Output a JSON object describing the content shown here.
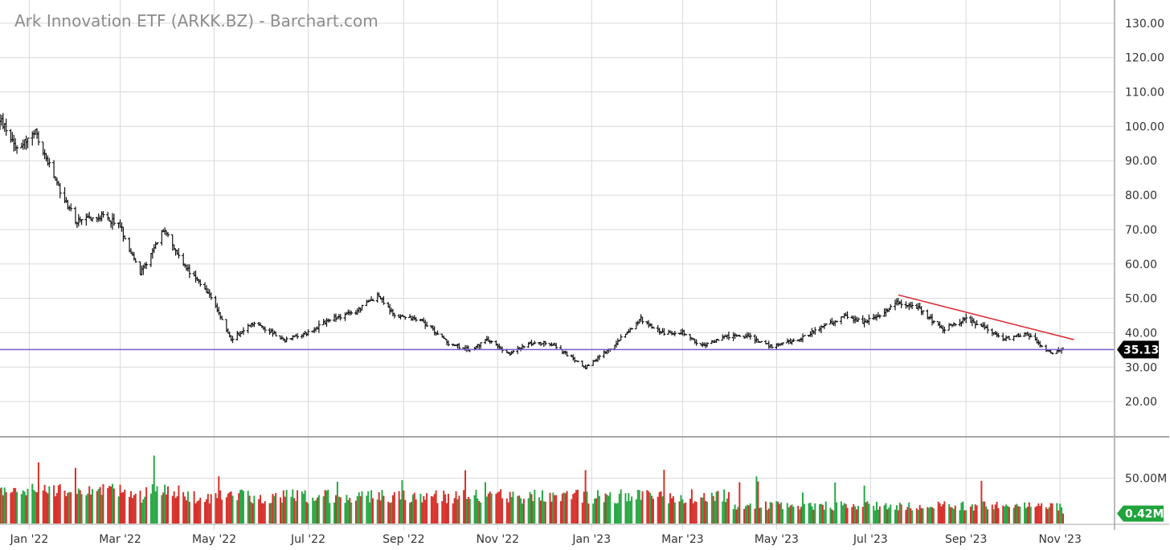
{
  "chart_data": {
    "type": "ohlc",
    "title": "Ark Innovation ETF (ARKK.BZ) - Barchart.com",
    "price_axis": {
      "ticks": [
        "130.00",
        "120.00",
        "110.00",
        "100.00",
        "90.00",
        "80.00",
        "70.00",
        "60.00",
        "50.00",
        "40.00",
        "30.00",
        "20.00"
      ],
      "tick_values": [
        130,
        120,
        110,
        100,
        90,
        80,
        70,
        60,
        50,
        40,
        30,
        20
      ],
      "ylim": [
        10,
        133
      ],
      "position": "right"
    },
    "volume_axis": {
      "ticks": [
        "50.00M"
      ],
      "tick_values": [
        50
      ],
      "ylim": [
        0,
        95
      ]
    },
    "x_axis": {
      "labels": [
        "Jan '22",
        "Mar '22",
        "May '22",
        "Jul '22",
        "Sep '22",
        "Nov '22",
        "Jan '23",
        "Mar '23",
        "May '23",
        "Jul '23",
        "Sep '23",
        "Nov '23"
      ],
      "range": [
        "2021-12-13",
        "2023-11-03"
      ]
    },
    "last_price": "35.13",
    "last_volume": "0.42M",
    "support_line": {
      "value": 35.13,
      "color": "#7b5ccc"
    },
    "trend_line": {
      "start": [
        "2023-07-19",
        51.0
      ],
      "end": [
        "2023-11-10",
        38.0
      ],
      "color": "#d9232d"
    },
    "price_anchors": [
      [
        "2021-12-13",
        102
      ],
      [
        "2021-12-24",
        94
      ],
      [
        "2022-01-05",
        98
      ],
      [
        "2022-01-20",
        82
      ],
      [
        "2022-02-01",
        72
      ],
      [
        "2022-02-15",
        74
      ],
      [
        "2022-02-28",
        72
      ],
      [
        "2022-03-14",
        57
      ],
      [
        "2022-03-29",
        70
      ],
      [
        "2022-04-11",
        60
      ],
      [
        "2022-04-29",
        50
      ],
      [
        "2022-05-12",
        38
      ],
      [
        "2022-05-27",
        43
      ],
      [
        "2022-06-16",
        38
      ],
      [
        "2022-07-01",
        40
      ],
      [
        "2022-07-15",
        44
      ],
      [
        "2022-08-01",
        46
      ],
      [
        "2022-08-15",
        51
      ],
      [
        "2022-08-26",
        45
      ],
      [
        "2022-09-12",
        44
      ],
      [
        "2022-09-30",
        37
      ],
      [
        "2022-10-14",
        35
      ],
      [
        "2022-10-25",
        38
      ],
      [
        "2022-11-09",
        34
      ],
      [
        "2022-11-22",
        37
      ],
      [
        "2022-12-05",
        37
      ],
      [
        "2022-12-28",
        30
      ],
      [
        "2023-01-12",
        35
      ],
      [
        "2023-02-02",
        44
      ],
      [
        "2023-02-16",
        40
      ],
      [
        "2023-03-01",
        40
      ],
      [
        "2023-03-13",
        36
      ],
      [
        "2023-03-28",
        39
      ],
      [
        "2023-04-13",
        39
      ],
      [
        "2023-04-28",
        36
      ],
      [
        "2023-05-15",
        38
      ],
      [
        "2023-06-01",
        42
      ],
      [
        "2023-06-15",
        45
      ],
      [
        "2023-06-26",
        43
      ],
      [
        "2023-07-06",
        45
      ],
      [
        "2023-07-19",
        49
      ],
      [
        "2023-08-01",
        47
      ],
      [
        "2023-08-17",
        41
      ],
      [
        "2023-09-01",
        44
      ],
      [
        "2023-09-12",
        42
      ],
      [
        "2023-09-25",
        38
      ],
      [
        "2023-10-10",
        40
      ],
      [
        "2023-10-26",
        34
      ],
      [
        "2023-11-03",
        35.13
      ]
    ]
  }
}
